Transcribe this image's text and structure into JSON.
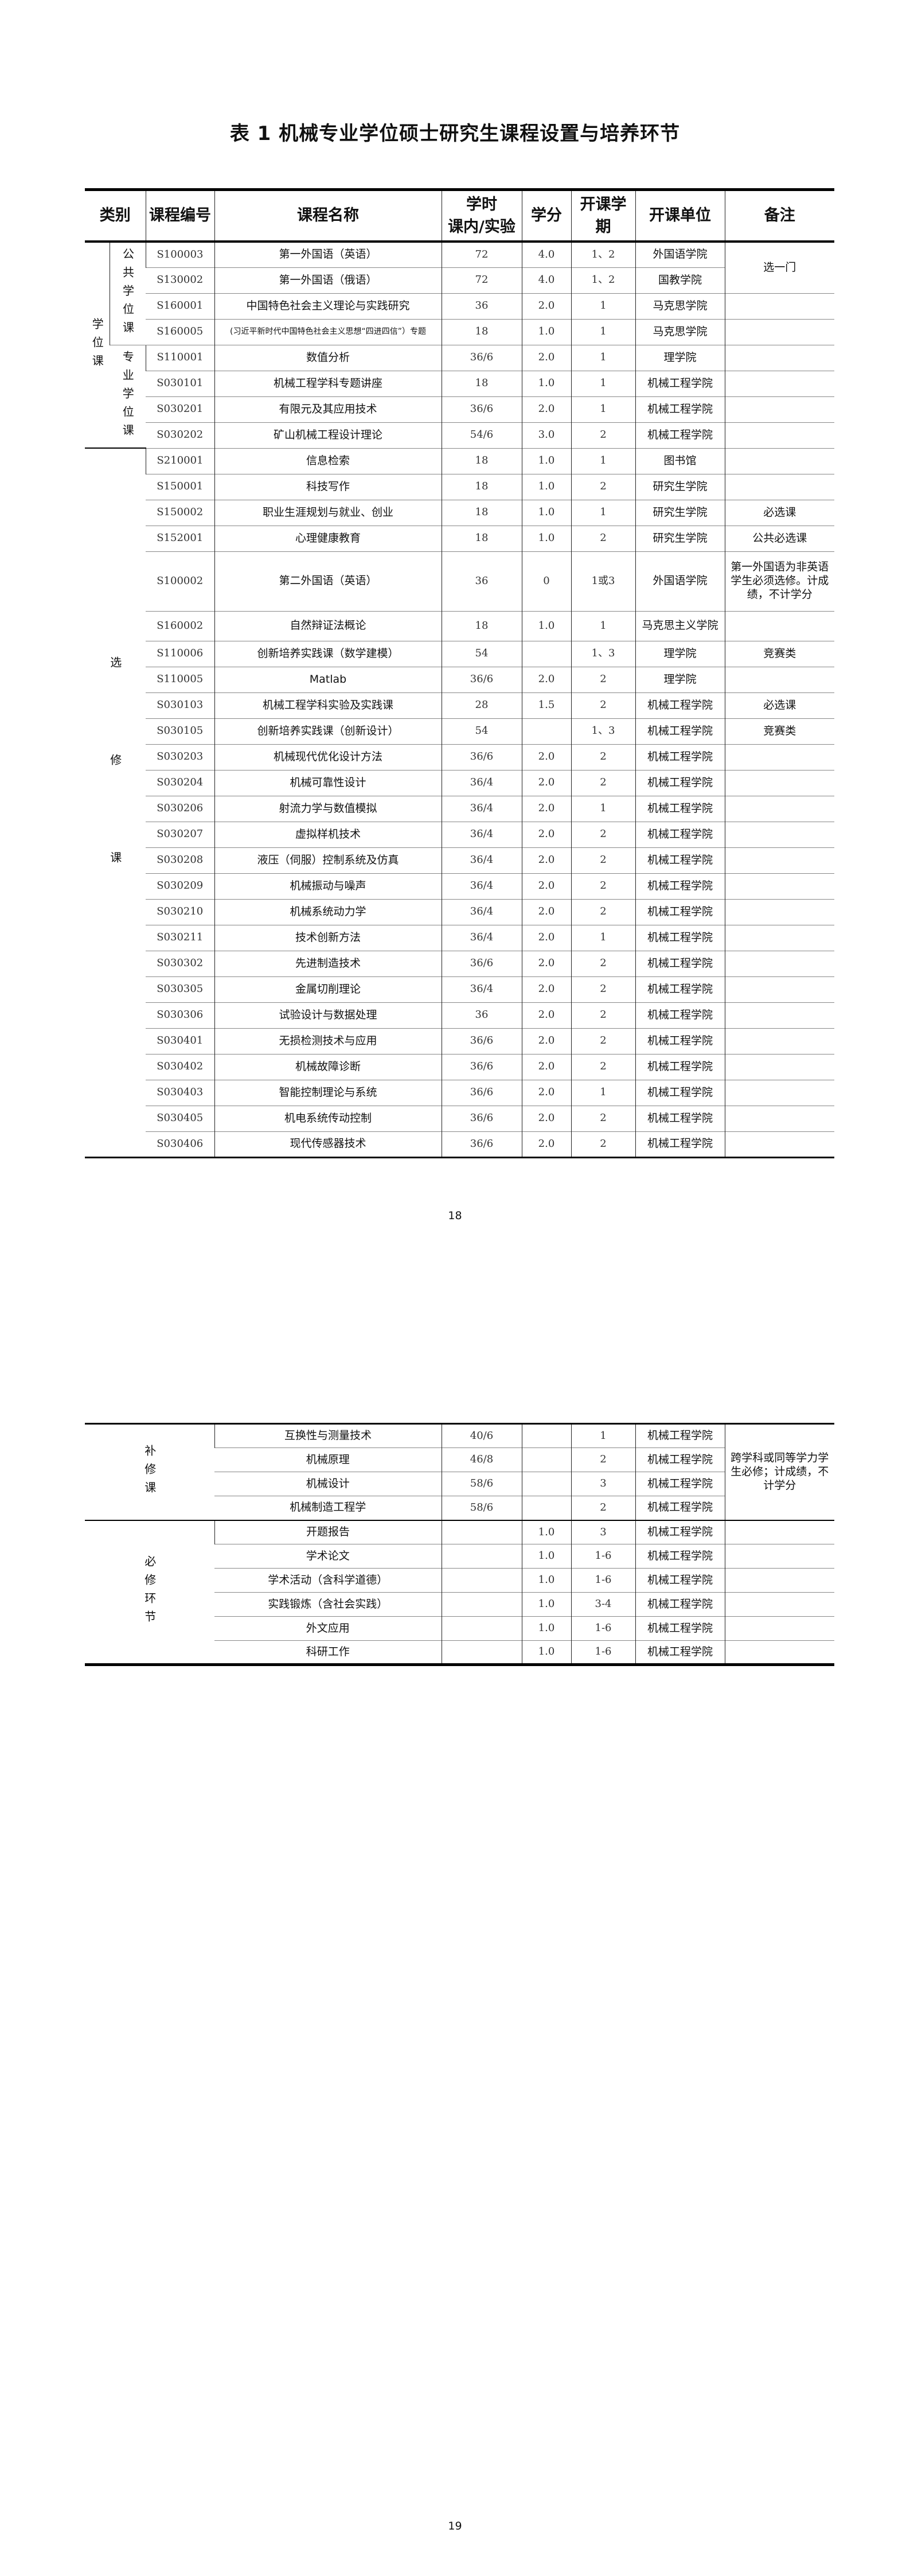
{
  "title": "表 1  机械专业学位硕士研究生课程设置与培养环节",
  "headers": {
    "category": "类别",
    "code": "课程编号",
    "name": "课程名称",
    "hours": "学时\n课内/实验",
    "credit": "学分",
    "semester": "开课学期",
    "unit": "开课单位",
    "note": "备注"
  },
  "categories": {
    "degree": "学位课",
    "public_degree": "公共学位课",
    "major_degree": "专业学位课",
    "elective": "选修课",
    "supplementary": "补修课",
    "required_links": "必修环节"
  },
  "notes": {
    "choose_one": "选一门",
    "supplementary": "跨学科或同等学力学生必修；计成绩，不计学分"
  },
  "table1_rows": [
    {
      "code": "S100003",
      "name": "第一外国语（英语）",
      "hours": "72",
      "credit": "4.0",
      "semester": "1、2",
      "unit": "外国语学院",
      "note": ""
    },
    {
      "code": "S130002",
      "name": "第一外国语（俄语）",
      "hours": "72",
      "credit": "4.0",
      "semester": "1、2",
      "unit": "国教学院",
      "note": ""
    },
    {
      "code": "S160001",
      "name": "中国特色社会主义理论与实践研究",
      "hours": "36",
      "credit": "2.0",
      "semester": "1",
      "unit": "马克思学院",
      "note": ""
    },
    {
      "code": "S160005",
      "name": "(习近平新时代中国特色社会主义思想“四进四信”）专题",
      "hours": "18",
      "credit": "1.0",
      "semester": "1",
      "unit": "马克思学院",
      "note": ""
    },
    {
      "code": "S110001",
      "name": "数值分析",
      "hours": "36/6",
      "credit": "2.0",
      "semester": "1",
      "unit": "理学院",
      "note": ""
    },
    {
      "code": "S030101",
      "name": "机械工程学科专题讲座",
      "hours": "18",
      "credit": "1.0",
      "semester": "1",
      "unit": "机械工程学院",
      "note": ""
    },
    {
      "code": "S030201",
      "name": "有限元及其应用技术",
      "hours": "36/6",
      "credit": "2.0",
      "semester": "1",
      "unit": "机械工程学院",
      "note": ""
    },
    {
      "code": "S030202",
      "name": "矿山机械工程设计理论",
      "hours": "54/6",
      "credit": "3.0",
      "semester": "2",
      "unit": "机械工程学院",
      "note": ""
    },
    {
      "code": "S210001",
      "name": "信息检索",
      "hours": "18",
      "credit": "1.0",
      "semester": "1",
      "unit": "图书馆",
      "note": ""
    },
    {
      "code": "S150001",
      "name": "科技写作",
      "hours": "18",
      "credit": "1.0",
      "semester": "2",
      "unit": "研究生学院",
      "note": ""
    },
    {
      "code": "S150002",
      "name": "职业生涯规划与就业、创业",
      "hours": "18",
      "credit": "1.0",
      "semester": "1",
      "unit": "研究生学院",
      "note": "必选课"
    },
    {
      "code": "S152001",
      "name": "心理健康教育",
      "hours": "18",
      "credit": "1.0",
      "semester": "2",
      "unit": "研究生学院",
      "note": "公共必选课"
    },
    {
      "code": "S100002",
      "name": "第二外国语（英语）",
      "hours": "36",
      "credit": "0",
      "semester": "1或3",
      "unit": "外国语学院",
      "note": "第一外国语为非英语学生必须选修。计成绩，不计学分"
    },
    {
      "code": "S160002",
      "name": "自然辩证法概论",
      "hours": "18",
      "credit": "1.0",
      "semester": "1",
      "unit": "马克思主义学院",
      "note": ""
    },
    {
      "code": "S110006",
      "name": "创新培养实践课（数学建模）",
      "hours": "54",
      "credit": "",
      "semester": "1、3",
      "unit": "理学院",
      "note": "竞赛类"
    },
    {
      "code": "S110005",
      "name": "Matlab",
      "hours": "36/6",
      "credit": "2.0",
      "semester": "2",
      "unit": "理学院",
      "note": ""
    },
    {
      "code": "S030103",
      "name": "机械工程学科实验及实践课",
      "hours": "28",
      "credit": "1.5",
      "semester": "2",
      "unit": "机械工程学院",
      "note": "必选课"
    },
    {
      "code": "S030105",
      "name": "创新培养实践课（创新设计）",
      "hours": "54",
      "credit": "",
      "semester": "1、3",
      "unit": "机械工程学院",
      "note": "竞赛类"
    },
    {
      "code": "S030203",
      "name": "机械现代优化设计方法",
      "hours": "36/6",
      "credit": "2.0",
      "semester": "2",
      "unit": "机械工程学院",
      "note": ""
    },
    {
      "code": "S030204",
      "name": "机械可靠性设计",
      "hours": "36/4",
      "credit": "2.0",
      "semester": "2",
      "unit": "机械工程学院",
      "note": ""
    },
    {
      "code": "S030206",
      "name": "射流力学与数值模拟",
      "hours": "36/4",
      "credit": "2.0",
      "semester": "1",
      "unit": "机械工程学院",
      "note": ""
    },
    {
      "code": "S030207",
      "name": "虚拟样机技术",
      "hours": "36/4",
      "credit": "2.0",
      "semester": "2",
      "unit": "机械工程学院",
      "note": ""
    },
    {
      "code": "S030208",
      "name": "液压（伺服）控制系统及仿真",
      "hours": "36/4",
      "credit": "2.0",
      "semester": "2",
      "unit": "机械工程学院",
      "note": ""
    },
    {
      "code": "S030209",
      "name": "机械振动与噪声",
      "hours": "36/4",
      "credit": "2.0",
      "semester": "2",
      "unit": "机械工程学院",
      "note": ""
    },
    {
      "code": "S030210",
      "name": "机械系统动力学",
      "hours": "36/4",
      "credit": "2.0",
      "semester": "2",
      "unit": "机械工程学院",
      "note": ""
    },
    {
      "code": "S030211",
      "name": "技术创新方法",
      "hours": "36/4",
      "credit": "2.0",
      "semester": "1",
      "unit": "机械工程学院",
      "note": ""
    },
    {
      "code": "S030302",
      "name": "先进制造技术",
      "hours": "36/6",
      "credit": "2.0",
      "semester": "2",
      "unit": "机械工程学院",
      "note": ""
    },
    {
      "code": "S030305",
      "name": "金属切削理论",
      "hours": "36/4",
      "credit": "2.0",
      "semester": "2",
      "unit": "机械工程学院",
      "note": ""
    },
    {
      "code": "S030306",
      "name": "试验设计与数据处理",
      "hours": "36",
      "credit": "2.0",
      "semester": "2",
      "unit": "机械工程学院",
      "note": ""
    },
    {
      "code": "S030401",
      "name": "无损检测技术与应用",
      "hours": "36/6",
      "credit": "2.0",
      "semester": "2",
      "unit": "机械工程学院",
      "note": ""
    },
    {
      "code": "S030402",
      "name": "机械故障诊断",
      "hours": "36/6",
      "credit": "2.0",
      "semester": "2",
      "unit": "机械工程学院",
      "note": ""
    },
    {
      "code": "S030403",
      "name": "智能控制理论与系统",
      "hours": "36/6",
      "credit": "2.0",
      "semester": "1",
      "unit": "机械工程学院",
      "note": ""
    },
    {
      "code": "S030405",
      "name": "机电系统传动控制",
      "hours": "36/6",
      "credit": "2.0",
      "semester": "2",
      "unit": "机械工程学院",
      "note": ""
    },
    {
      "code": "S030406",
      "name": "现代传感器技术",
      "hours": "36/6",
      "credit": "2.0",
      "semester": "2",
      "unit": "机械工程学院",
      "note": ""
    }
  ],
  "table2_rows": [
    {
      "name": "互换性与测量技术",
      "hours": "40/6",
      "credit": "",
      "semester": "1",
      "unit": "机械工程学院"
    },
    {
      "name": "机械原理",
      "hours": "46/8",
      "credit": "",
      "semester": "2",
      "unit": "机械工程学院"
    },
    {
      "name": "机械设计",
      "hours": "58/6",
      "credit": "",
      "semester": "3",
      "unit": "机械工程学院"
    },
    {
      "name": "机械制造工程学",
      "hours": "58/6",
      "credit": "",
      "semester": "2",
      "unit": "机械工程学院"
    },
    {
      "name": "开题报告",
      "hours": "",
      "credit": "1.0",
      "semester": "3",
      "unit": "机械工程学院"
    },
    {
      "name": "学术论文",
      "hours": "",
      "credit": "1.0",
      "semester": "1-6",
      "unit": "机械工程学院"
    },
    {
      "name": "学术活动（含科学道德）",
      "hours": "",
      "credit": "1.0",
      "semester": "1-6",
      "unit": "机械工程学院"
    },
    {
      "name": "实践锻炼（含社会实践）",
      "hours": "",
      "credit": "1.0",
      "semester": "3-4",
      "unit": "机械工程学院"
    },
    {
      "name": "外文应用",
      "hours": "",
      "credit": "1.0",
      "semester": "1-6",
      "unit": "机械工程学院"
    },
    {
      "name": "科研工作",
      "hours": "",
      "credit": "1.0",
      "semester": "1-6",
      "unit": "机械工程学院"
    }
  ],
  "page_numbers": [
    "18",
    "19"
  ]
}
